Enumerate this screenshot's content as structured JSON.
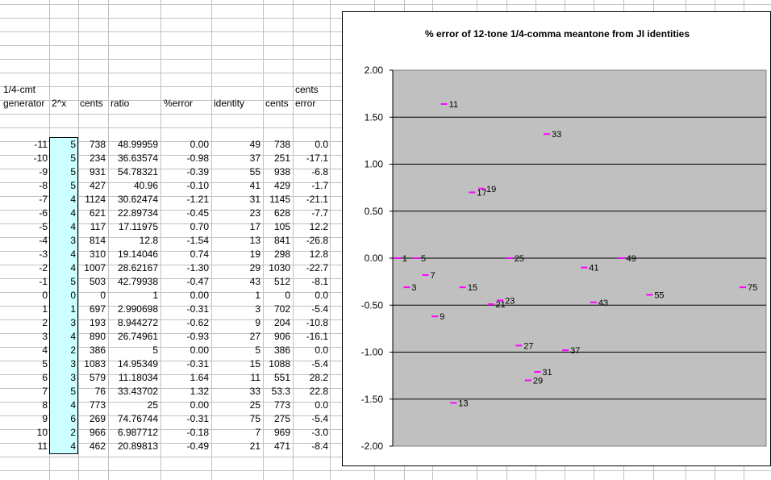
{
  "sheet": {
    "header_row1": {
      "generator": "1/4-cmt",
      "cents_error": "cents"
    },
    "header_row2": {
      "generator": "generator",
      "pow2": "2^x",
      "cents": "cents",
      "ratio": "ratio",
      "pct_error": "%error",
      "identity": "identity",
      "ji_cents": "cents",
      "cents_error": "error"
    },
    "rows": [
      {
        "gen": "-11",
        "pow2": "5",
        "cents": "738",
        "ratio": "48.99959",
        "pct": "0.00",
        "identity": "49",
        "jicents": "738",
        "cerr": "0.0"
      },
      {
        "gen": "-10",
        "pow2": "5",
        "cents": "234",
        "ratio": "36.63574",
        "pct": "-0.98",
        "identity": "37",
        "jicents": "251",
        "cerr": "-17.1"
      },
      {
        "gen": "-9",
        "pow2": "5",
        "cents": "931",
        "ratio": "54.78321",
        "pct": "-0.39",
        "identity": "55",
        "jicents": "938",
        "cerr": "-6.8"
      },
      {
        "gen": "-8",
        "pow2": "5",
        "cents": "427",
        "ratio": "40.96",
        "pct": "-0.10",
        "identity": "41",
        "jicents": "429",
        "cerr": "-1.7"
      },
      {
        "gen": "-7",
        "pow2": "4",
        "cents": "1124",
        "ratio": "30.62474",
        "pct": "-1.21",
        "identity": "31",
        "jicents": "1145",
        "cerr": "-21.1"
      },
      {
        "gen": "-6",
        "pow2": "4",
        "cents": "621",
        "ratio": "22.89734",
        "pct": "-0.45",
        "identity": "23",
        "jicents": "628",
        "cerr": "-7.7"
      },
      {
        "gen": "-5",
        "pow2": "4",
        "cents": "117",
        "ratio": "17.11975",
        "pct": "0.70",
        "identity": "17",
        "jicents": "105",
        "cerr": "12.2"
      },
      {
        "gen": "-4",
        "pow2": "3",
        "cents": "814",
        "ratio": "12.8",
        "pct": "-1.54",
        "identity": "13",
        "jicents": "841",
        "cerr": "-26.8"
      },
      {
        "gen": "-3",
        "pow2": "4",
        "cents": "310",
        "ratio": "19.14046",
        "pct": "0.74",
        "identity": "19",
        "jicents": "298",
        "cerr": "12.8"
      },
      {
        "gen": "-2",
        "pow2": "4",
        "cents": "1007",
        "ratio": "28.62167",
        "pct": "-1.30",
        "identity": "29",
        "jicents": "1030",
        "cerr": "-22.7"
      },
      {
        "gen": "-1",
        "pow2": "5",
        "cents": "503",
        "ratio": "42.79938",
        "pct": "-0.47",
        "identity": "43",
        "jicents": "512",
        "cerr": "-8.1"
      },
      {
        "gen": "0",
        "pow2": "0",
        "cents": "0",
        "ratio": "1",
        "pct": "0.00",
        "identity": "1",
        "jicents": "0",
        "cerr": "0.0"
      },
      {
        "gen": "1",
        "pow2": "1",
        "cents": "697",
        "ratio": "2.990698",
        "pct": "-0.31",
        "identity": "3",
        "jicents": "702",
        "cerr": "-5.4"
      },
      {
        "gen": "2",
        "pow2": "3",
        "cents": "193",
        "ratio": "8.944272",
        "pct": "-0.62",
        "identity": "9",
        "jicents": "204",
        "cerr": "-10.8"
      },
      {
        "gen": "3",
        "pow2": "4",
        "cents": "890",
        "ratio": "26.74961",
        "pct": "-0.93",
        "identity": "27",
        "jicents": "906",
        "cerr": "-16.1"
      },
      {
        "gen": "4",
        "pow2": "2",
        "cents": "386",
        "ratio": "5",
        "pct": "0.00",
        "identity": "5",
        "jicents": "386",
        "cerr": "0.0"
      },
      {
        "gen": "5",
        "pow2": "3",
        "cents": "1083",
        "ratio": "14.95349",
        "pct": "-0.31",
        "identity": "15",
        "jicents": "1088",
        "cerr": "-5.4"
      },
      {
        "gen": "6",
        "pow2": "3",
        "cents": "579",
        "ratio": "11.18034",
        "pct": "1.64",
        "identity": "11",
        "jicents": "551",
        "cerr": "28.2"
      },
      {
        "gen": "7",
        "pow2": "5",
        "cents": "76",
        "ratio": "33.43702",
        "pct": "1.32",
        "identity": "33",
        "jicents": "53.3",
        "cerr": "22.8"
      },
      {
        "gen": "8",
        "pow2": "4",
        "cents": "773",
        "ratio": "25",
        "pct": "0.00",
        "identity": "25",
        "jicents": "773",
        "cerr": "0.0"
      },
      {
        "gen": "9",
        "pow2": "6",
        "cents": "269",
        "ratio": "74.76744",
        "pct": "-0.31",
        "identity": "75",
        "jicents": "275",
        "cerr": "-5.4"
      },
      {
        "gen": "10",
        "pow2": "2",
        "cents": "966",
        "ratio": "6.987712",
        "pct": "-0.18",
        "identity": "7",
        "jicents": "969",
        "cerr": "-3.0"
      },
      {
        "gen": "11",
        "pow2": "4",
        "cents": "462",
        "ratio": "20.89813",
        "pct": "-0.49",
        "identity": "21",
        "jicents": "471",
        "cerr": "-8.4"
      }
    ]
  },
  "colors": {
    "gridline": "#c0c0c0",
    "highlight": "#ccffff",
    "plot_bg": "#c0c0c0",
    "marker": "#ff00ff"
  },
  "chart_data": {
    "type": "scatter",
    "title": "% error of 12-tone 1/4-comma meantone from JI identities",
    "xlabel": "",
    "ylabel": "",
    "ylim": [
      -2.0,
      2.0
    ],
    "xlim": [
      0,
      80
    ],
    "y_ticks": [
      "2.00",
      "1.50",
      "1.00",
      "0.50",
      "0.00",
      "-0.50",
      "-1.00",
      "-1.50",
      "-2.00"
    ],
    "grid": true,
    "legend": "none",
    "points": [
      {
        "x": 1,
        "y": 0.0,
        "label": "1"
      },
      {
        "x": 3,
        "y": -0.31,
        "label": "3"
      },
      {
        "x": 5,
        "y": 0.0,
        "label": "5"
      },
      {
        "x": 7,
        "y": -0.18,
        "label": "7"
      },
      {
        "x": 9,
        "y": -0.62,
        "label": "9"
      },
      {
        "x": 11,
        "y": 1.64,
        "label": "11"
      },
      {
        "x": 13,
        "y": -1.54,
        "label": "13"
      },
      {
        "x": 15,
        "y": -0.31,
        "label": "15"
      },
      {
        "x": 17,
        "y": 0.7,
        "label": "17"
      },
      {
        "x": 19,
        "y": 0.74,
        "label": "19"
      },
      {
        "x": 21,
        "y": -0.49,
        "label": "21"
      },
      {
        "x": 23,
        "y": -0.45,
        "label": "23"
      },
      {
        "x": 25,
        "y": 0.0,
        "label": "25"
      },
      {
        "x": 27,
        "y": -0.93,
        "label": "27"
      },
      {
        "x": 29,
        "y": -1.3,
        "label": "29"
      },
      {
        "x": 31,
        "y": -1.21,
        "label": "31"
      },
      {
        "x": 33,
        "y": 1.32,
        "label": "33"
      },
      {
        "x": 37,
        "y": -0.98,
        "label": "37"
      },
      {
        "x": 41,
        "y": -0.1,
        "label": "41"
      },
      {
        "x": 43,
        "y": -0.47,
        "label": "43"
      },
      {
        "x": 49,
        "y": 0.0,
        "label": "49"
      },
      {
        "x": 55,
        "y": -0.39,
        "label": "55"
      },
      {
        "x": 75,
        "y": -0.31,
        "label": "75"
      }
    ]
  }
}
